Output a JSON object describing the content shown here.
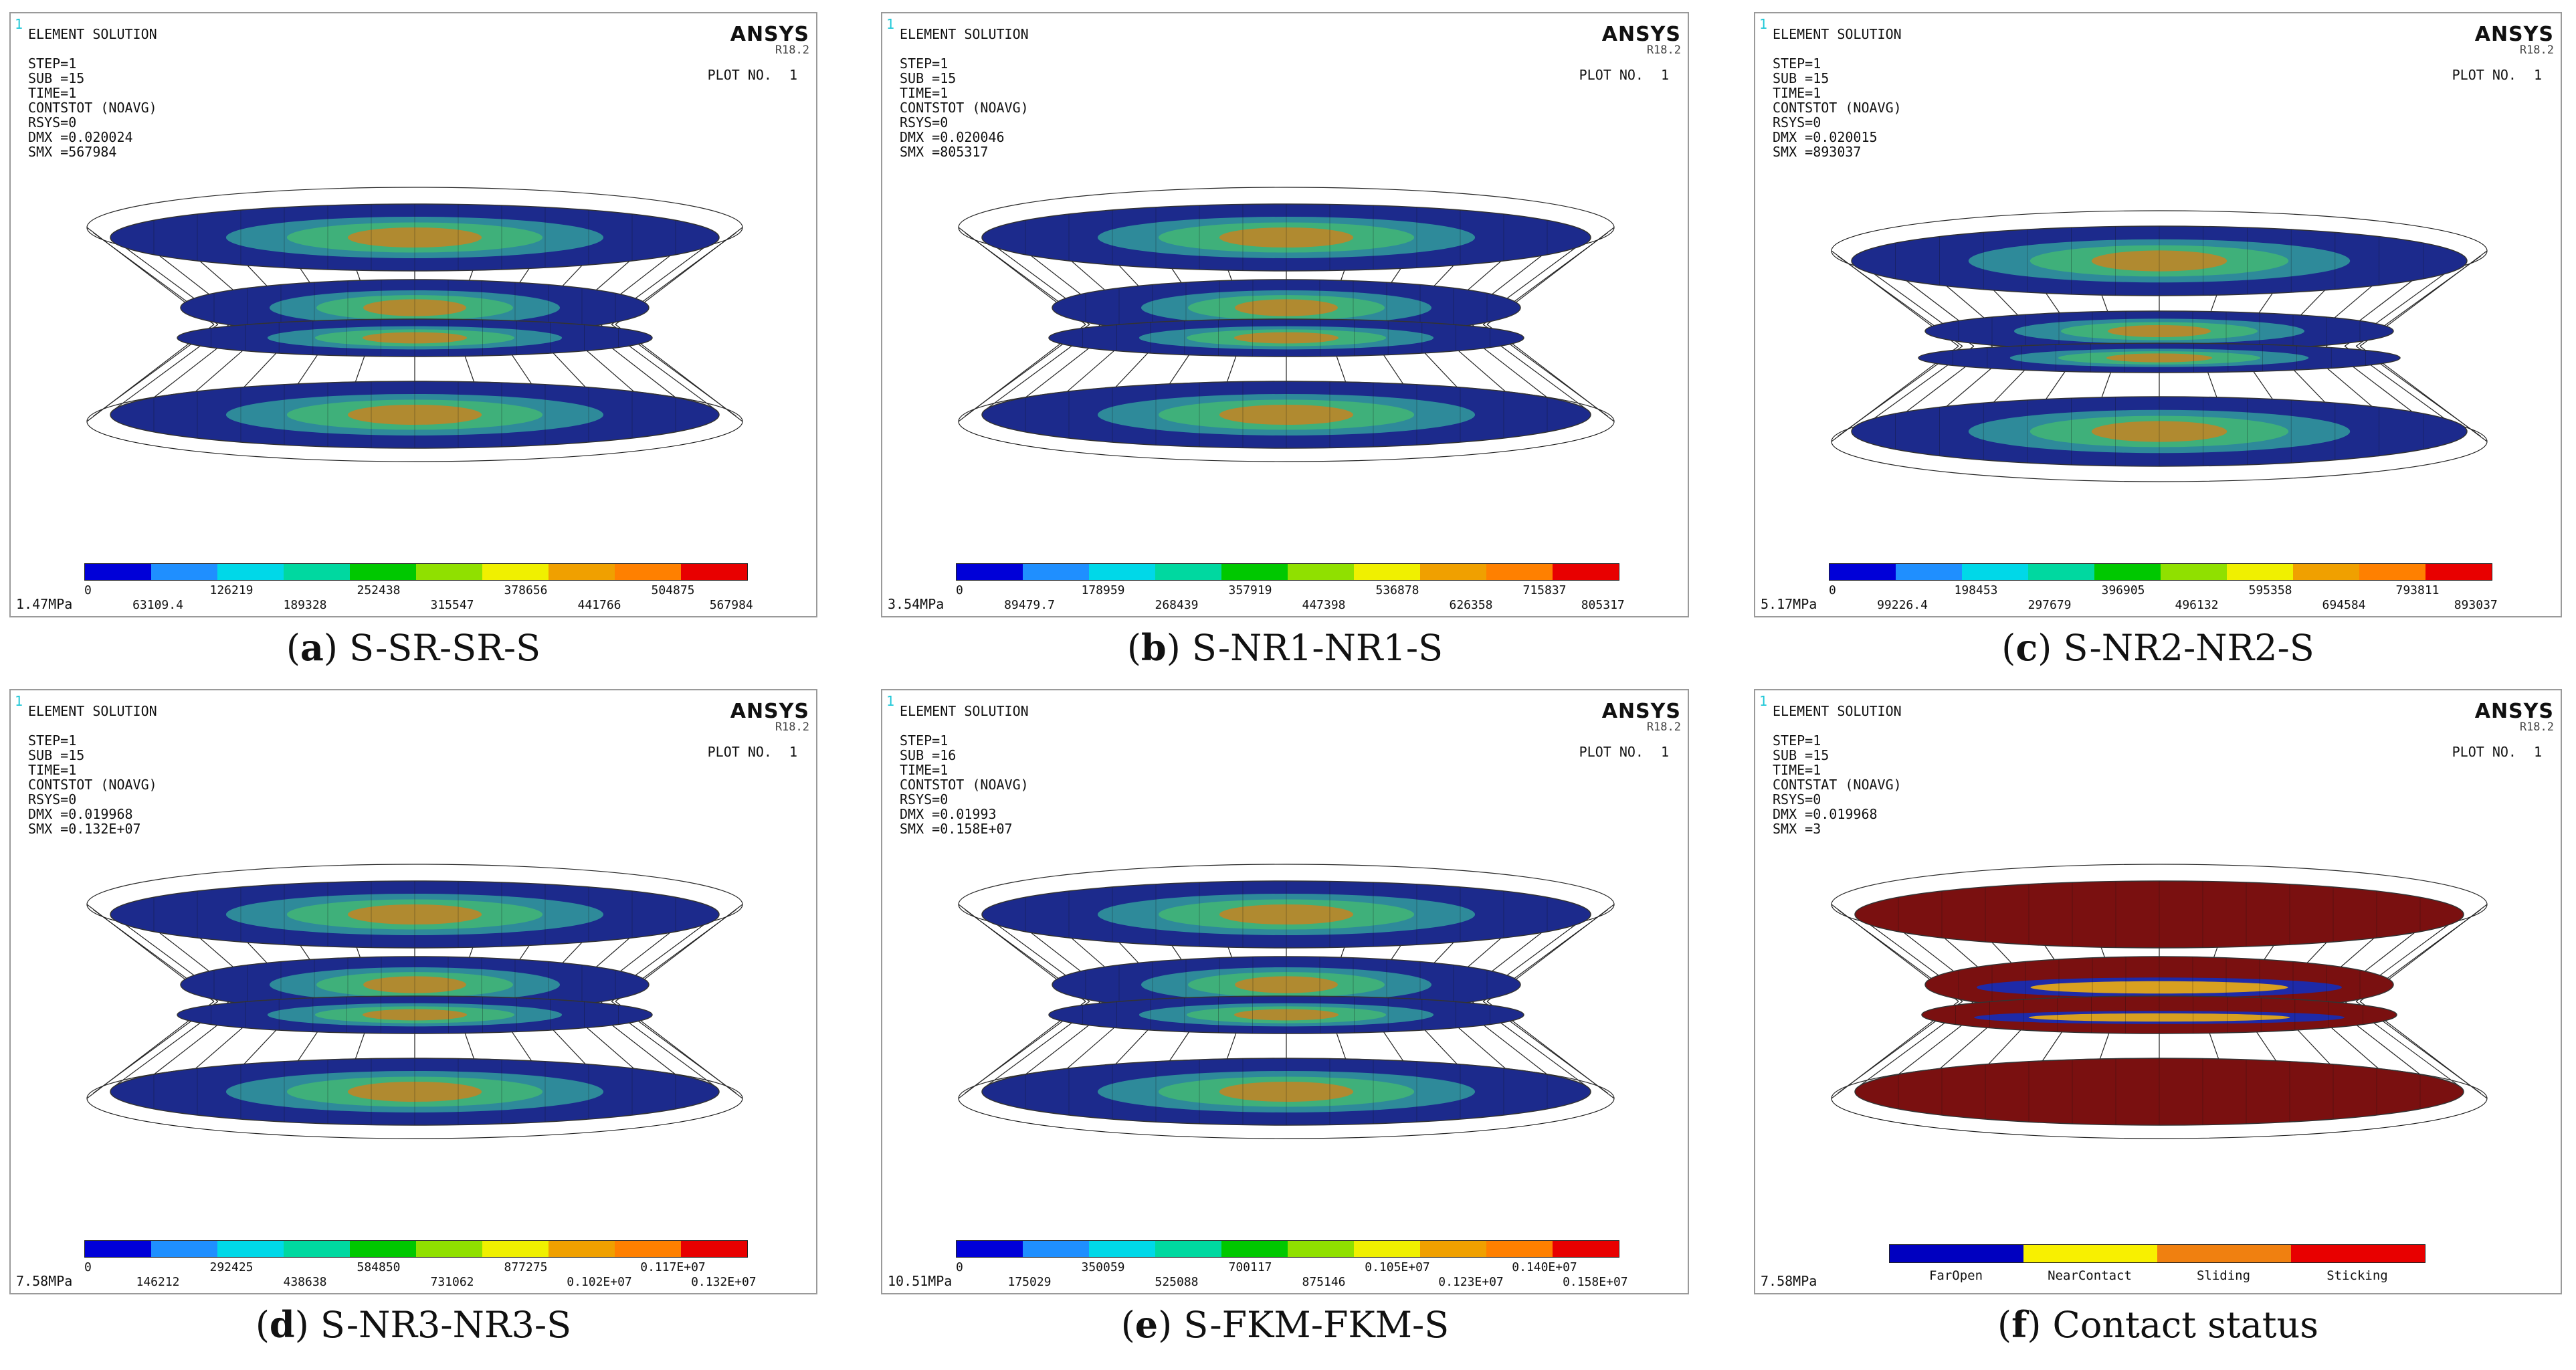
{
  "brand": "ANSYS",
  "version": "R18.2",
  "plot_label": "PLOT NO.",
  "plot_number": "1",
  "corner_number": "1",
  "legend_colors": [
    "#0000d8",
    "#1f8fff",
    "#00d8e8",
    "#00d8a0",
    "#00c800",
    "#90e000",
    "#f0f000",
    "#f0a000",
    "#ff8000",
    "#e80000"
  ],
  "contact_colors": [
    "#0000c0",
    "#f8f000",
    "#f08010",
    "#e80000"
  ],
  "panels": [
    {
      "letter": "a",
      "caption": " S-SR-SR-S",
      "header": [
        "ELEMENT SOLUTION",
        "",
        "STEP=1",
        "SUB =15",
        "TIME=1",
        "CONTSTOT (NOAVG)",
        "RSYS=0",
        "DMX =0.020024",
        "SMX =567984"
      ],
      "ticks": [
        "0",
        "63109.4",
        "126219",
        "189328",
        "252438",
        "315547",
        "378656",
        "441766",
        "504875",
        "567984"
      ],
      "scale": "1.47MPa",
      "type": "stress"
    },
    {
      "letter": "b",
      "caption": " S-NR1-NR1-S",
      "header": [
        "ELEMENT SOLUTION",
        "",
        "STEP=1",
        "SUB =15",
        "TIME=1",
        "CONTSTOT (NOAVG)",
        "RSYS=0",
        "DMX =0.020046",
        "SMX =805317"
      ],
      "ticks": [
        "0",
        "89479.7",
        "178959",
        "268439",
        "357919",
        "447398",
        "536878",
        "626358",
        "715837",
        "805317"
      ],
      "scale": "3.54MPa",
      "type": "stress"
    },
    {
      "letter": "c",
      "caption": " S-NR2-NR2-S",
      "header": [
        "ELEMENT SOLUTION",
        "",
        "STEP=1",
        "SUB =15",
        "TIME=1",
        "CONTSTOT (NOAVG)",
        "RSYS=0",
        "DMX =0.020015",
        "SMX =893037"
      ],
      "ticks": [
        "0",
        "99226.4",
        "198453",
        "297679",
        "396905",
        "496132",
        "595358",
        "694584",
        "793811",
        "893037"
      ],
      "scale": "5.17MPa",
      "type": "stress"
    },
    {
      "letter": "d",
      "caption": " S-NR3-NR3-S",
      "header": [
        "ELEMENT SOLUTION",
        "",
        "STEP=1",
        "SUB =15",
        "TIME=1",
        "CONTSTOT (NOAVG)",
        "RSYS=0",
        "DMX =0.019968",
        "SMX =0.132E+07"
      ],
      "ticks": [
        "0",
        "146212",
        "292425",
        "438638",
        "584850",
        "731062",
        "877275",
        "0.102E+07",
        "0.117E+07",
        "0.132E+07"
      ],
      "scale": "7.58MPa",
      "type": "stress"
    },
    {
      "letter": "e",
      "caption": " S-FKM-FKM-S",
      "header": [
        "ELEMENT SOLUTION",
        "",
        "STEP=1",
        "SUB =16",
        "TIME=1",
        "CONTSTOT (NOAVG)",
        "RSYS=0",
        "DMX =0.01993",
        "SMX =0.158E+07"
      ],
      "ticks": [
        "0",
        "175029",
        "350059",
        "525088",
        "700117",
        "875146",
        "0.105E+07",
        "0.123E+07",
        "0.140E+07",
        "0.158E+07"
      ],
      "scale": "10.51MPa",
      "type": "stress"
    },
    {
      "letter": "f",
      "caption": " Contact status",
      "header": [
        "ELEMENT SOLUTION",
        "",
        "STEP=1",
        "SUB =15",
        "TIME=1",
        "CONTSTAT (NOAVG)",
        "RSYS=0",
        "DMX =0.019968",
        "SMX =3"
      ],
      "contact_labels": [
        "FarOpen",
        "NearContact",
        "Sliding",
        "Sticking"
      ],
      "scale": "7.58MPa",
      "type": "contact"
    }
  ]
}
